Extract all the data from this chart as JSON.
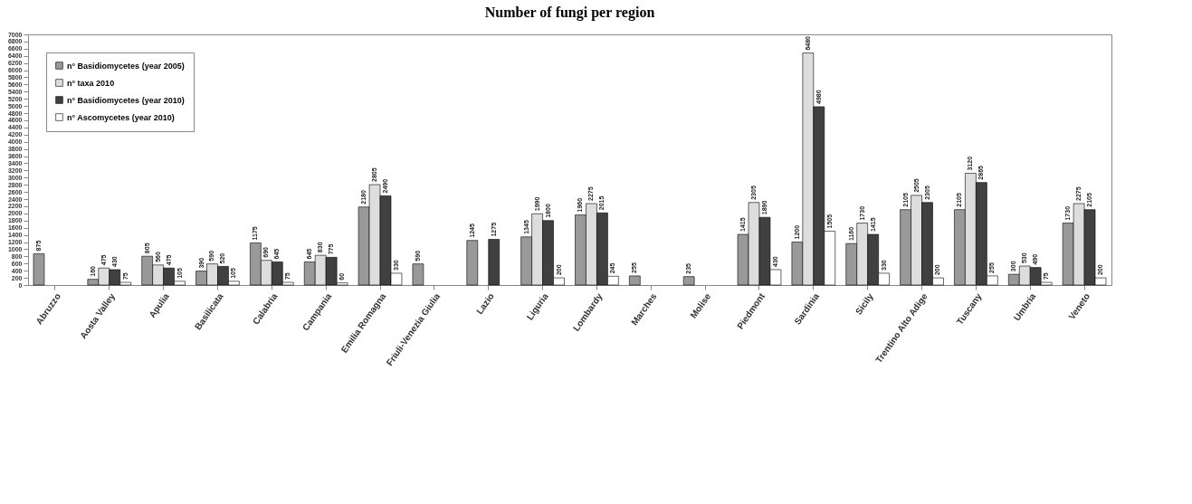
{
  "chart_data": {
    "type": "bar",
    "title": "Number of fungi per region",
    "categories": [
      "Abruzzo",
      "Aosta Valley",
      "Apulia",
      "Basilicata",
      "Calabria",
      "Campania",
      "Emilia Romagna",
      "Friuli-Venezia Giulia",
      "Lazio",
      "Liguria",
      "Lombardy",
      "Marches",
      "Molise",
      "Piedmont",
      "Sardinia",
      "Sicily",
      "Trentino Alto Adige",
      "Tuscany",
      "Umbria",
      "Veneto"
    ],
    "series": [
      {
        "name": "n° Basidiomycetes (year 2005)",
        "color": "#999999",
        "values": [
          875,
          160,
          805,
          390,
          1175,
          645,
          2180,
          590,
          1245,
          1345,
          1960,
          255,
          235,
          1415,
          1200,
          1160,
          2105,
          2105,
          300,
          1730
        ]
      },
      {
        "name": "n° taxa 2010",
        "color": "#dddddd",
        "values": [
          null,
          475,
          560,
          590,
          690,
          830,
          2805,
          null,
          null,
          1990,
          2275,
          null,
          null,
          2305,
          6480,
          1730,
          2505,
          3120,
          530,
          2275
        ]
      },
      {
        "name": "n° Basidiomycetes (year 2010)",
        "color": "#404040",
        "values": [
          null,
          430,
          475,
          520,
          645,
          775,
          2490,
          null,
          1275,
          1800,
          2015,
          null,
          null,
          1890,
          4980,
          1415,
          2305,
          2865,
          490,
          2105
        ]
      },
      {
        "name": "n° Ascomycetes (year 2010)",
        "color": "#ffffff",
        "values": [
          null,
          75,
          105,
          105,
          75,
          60,
          330,
          null,
          null,
          200,
          245,
          null,
          null,
          430,
          1505,
          330,
          200,
          255,
          75,
          200
        ]
      }
    ],
    "ylim": [
      0,
      7000
    ],
    "yticks": [
      0,
      200,
      400,
      600,
      800,
      1000,
      1200,
      1400,
      1600,
      1800,
      2000,
      2200,
      2400,
      2600,
      2800,
      3000,
      3200,
      3400,
      3600,
      3800,
      4000,
      4200,
      4400,
      4600,
      4800,
      5000,
      5200,
      5400,
      5600,
      5800,
      6000,
      6200,
      6400,
      6600,
      6800,
      7000
    ],
    "grid": false,
    "legend": "top left",
    "data_labels": true
  }
}
